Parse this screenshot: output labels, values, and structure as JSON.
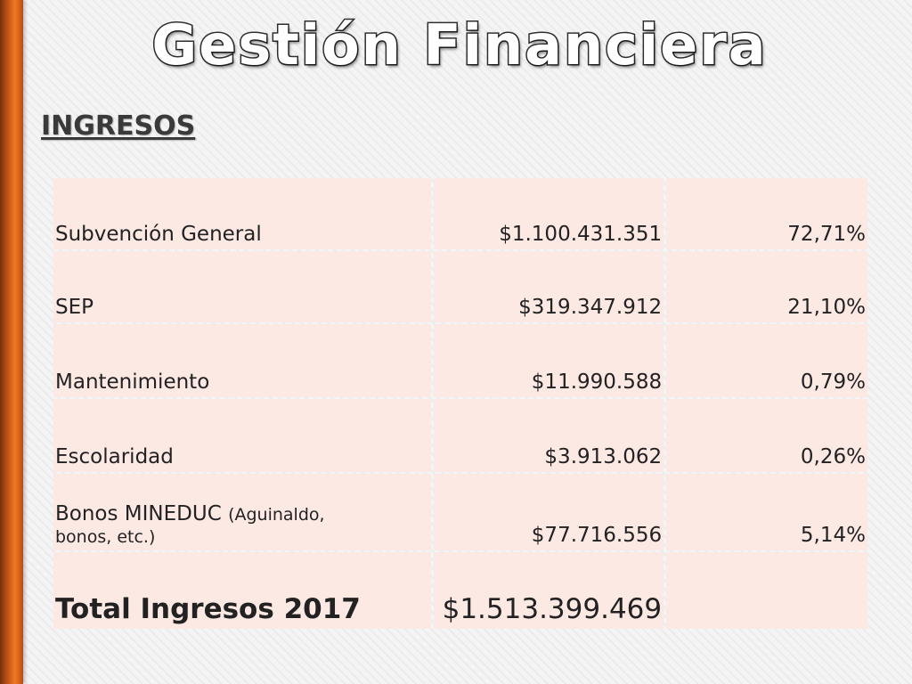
{
  "slide": {
    "title": "Gestión Financiera",
    "section": "INGRESOS"
  },
  "table": {
    "rows": [
      {
        "label": "Subvención General",
        "amount": "$1.100.431.351",
        "percent": "72,71%"
      },
      {
        "label": "SEP",
        "amount": "$319.347.912",
        "percent": "21,10%"
      },
      {
        "label": "Mantenimiento",
        "amount": "$11.990.588",
        "percent": "0,79%"
      },
      {
        "label": "Escolaridad",
        "amount": "$3.913.062",
        "percent": "0,26%"
      },
      {
        "label": "Bonos MINEDUC",
        "label_note": "(Aguinaldo,",
        "label_note_2": "bonos, etc.)",
        "amount": "$77.716.556",
        "percent": "5,14%"
      }
    ],
    "total": {
      "label": "Total Ingresos 2017",
      "amount": "$1.513.399.469",
      "percent": ""
    }
  },
  "colors": {
    "accent_bar": "#f07a22",
    "cell_background": "#fde9e4",
    "heading_text": "#3a3a3a"
  }
}
